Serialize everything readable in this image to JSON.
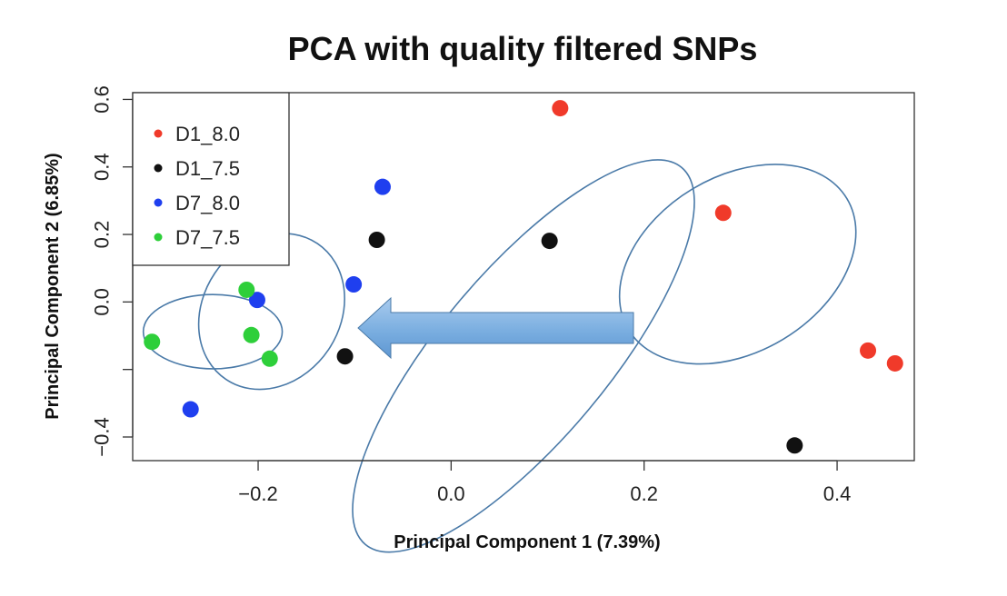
{
  "chart_data": {
    "type": "scatter",
    "title": "PCA with quality filtered SNPs",
    "xlabel": "Principal Component 1 (7.39%)",
    "ylabel": "Principal Component 2 (6.85%)",
    "xlim": [
      -0.33,
      0.48
    ],
    "ylim": [
      -0.47,
      0.62
    ],
    "x_ticks": [
      -0.2,
      0.0,
      0.2,
      0.4
    ],
    "x_tick_labels": [
      "−0.2",
      "0.0",
      "0.2",
      "0.4"
    ],
    "y_ticks": [
      -0.4,
      -0.2,
      0.0,
      0.2,
      0.4,
      0.6
    ],
    "y_tick_labels": [
      "−0.4",
      "",
      "0.0",
      "0.2",
      "0.4",
      "0.6"
    ],
    "legend_position": "top-left",
    "series": [
      {
        "name": "D1_8.0",
        "color": "#f03a2a",
        "points": [
          [
            0.113,
            0.574
          ],
          [
            0.282,
            0.264
          ],
          [
            0.432,
            -0.144
          ],
          [
            0.46,
            -0.182
          ]
        ]
      },
      {
        "name": "D1_7.5",
        "color": "#111111",
        "points": [
          [
            -0.077,
            0.184
          ],
          [
            0.102,
            0.181
          ],
          [
            -0.11,
            -0.161
          ],
          [
            0.356,
            -0.425
          ]
        ]
      },
      {
        "name": "D7_8.0",
        "color": "#1f3fef",
        "points": [
          [
            -0.071,
            0.341
          ],
          [
            -0.101,
            0.052
          ],
          [
            -0.201,
            0.006
          ],
          [
            -0.27,
            -0.318
          ]
        ]
      },
      {
        "name": "D7_7.5",
        "color": "#2ecf3a",
        "points": [
          [
            -0.212,
            0.036
          ],
          [
            -0.207,
            -0.098
          ],
          [
            -0.188,
            -0.168
          ],
          [
            -0.31,
            -0.118
          ]
        ]
      }
    ],
    "annotations": [
      {
        "type": "ellipse",
        "name": "cluster-d7-7.5"
      },
      {
        "type": "ellipse",
        "name": "cluster-d7-8.0"
      },
      {
        "type": "ellipse",
        "name": "cluster-d1-7.5"
      },
      {
        "type": "ellipse",
        "name": "cluster-d1-8.0"
      },
      {
        "type": "arrow",
        "direction": "left"
      }
    ],
    "annotation_color": "#4a7aa8",
    "arrow_fill": "#7aaee0",
    "grid": false
  }
}
